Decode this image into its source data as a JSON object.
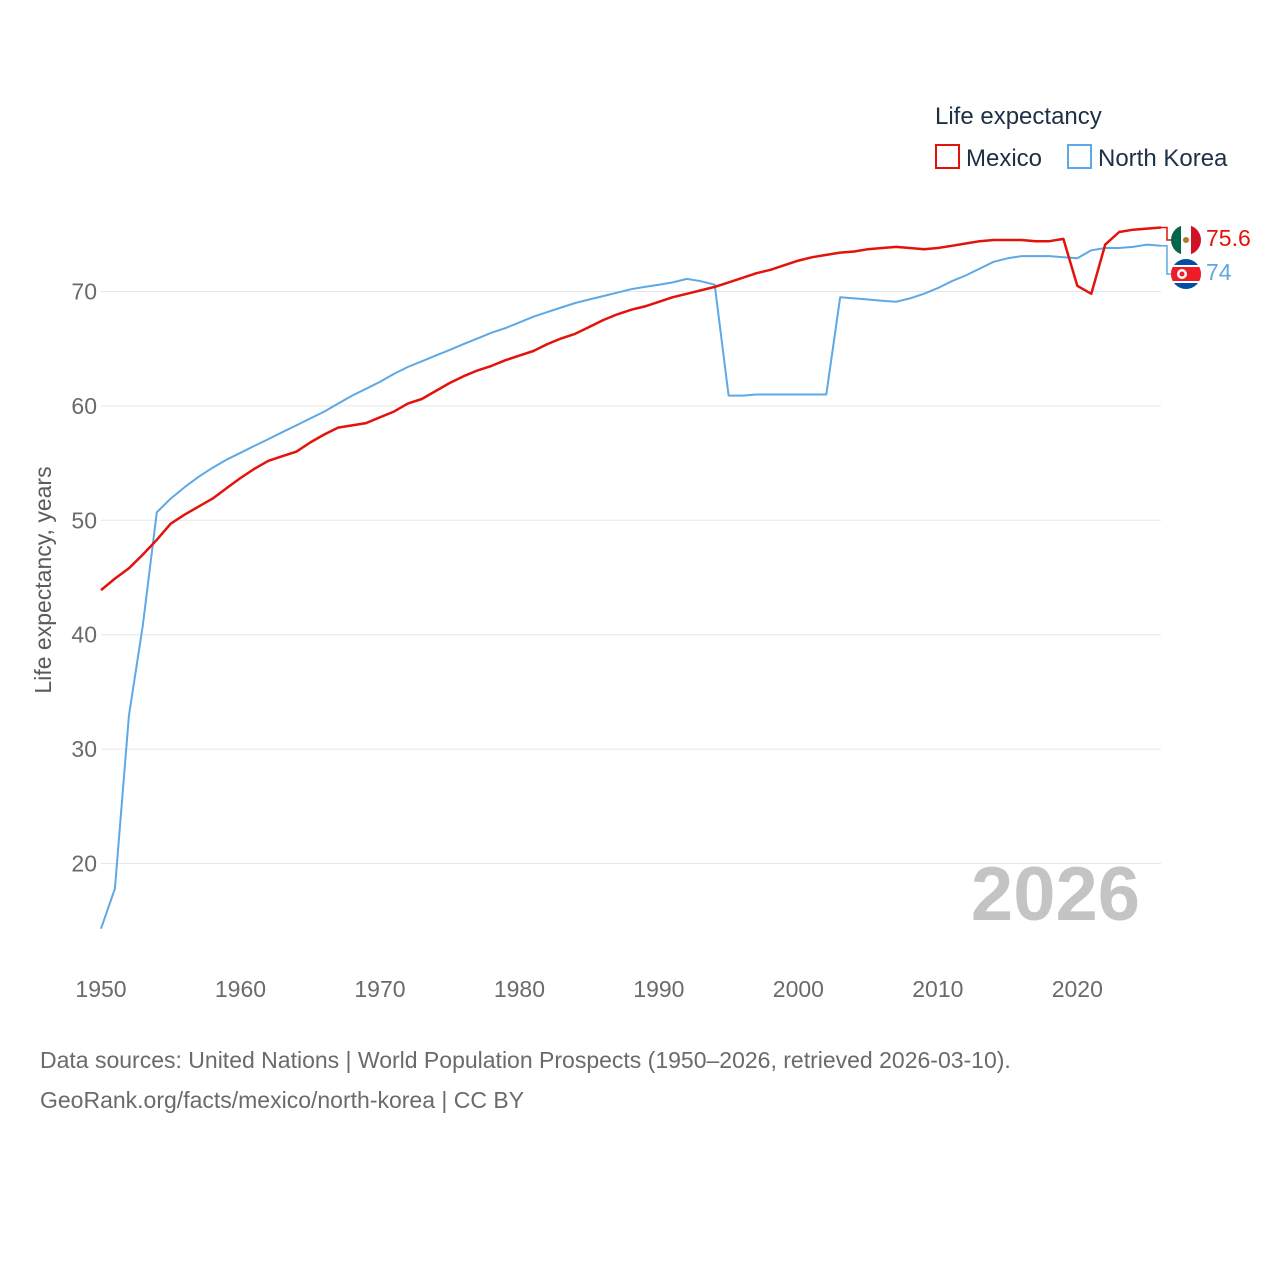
{
  "chart_data": {
    "type": "line",
    "ylabel": "Life expectancy, years",
    "xlabel": "",
    "legend_title": "Life expectancy",
    "legend_position": "top-right",
    "year_watermark": "2026",
    "xlim": [
      1950,
      2026
    ],
    "ylim": [
      12,
      78
    ],
    "x_ticks": [
      1950,
      1960,
      1970,
      1980,
      1990,
      2000,
      2010,
      2020
    ],
    "y_ticks": [
      20,
      30,
      40,
      50,
      60,
      70
    ],
    "grid": true,
    "series": [
      {
        "name": "Mexico",
        "color": "#e3120b",
        "end_label": "75.6",
        "flag": "mexico-flag",
        "points": [
          [
            1950,
            43.9
          ],
          [
            1951,
            44.9
          ],
          [
            1952,
            45.8
          ],
          [
            1953,
            47.0
          ],
          [
            1954,
            48.3
          ],
          [
            1955,
            49.7
          ],
          [
            1956,
            50.5
          ],
          [
            1957,
            51.2
          ],
          [
            1958,
            51.9
          ],
          [
            1959,
            52.8
          ],
          [
            1960,
            53.7
          ],
          [
            1961,
            54.5
          ],
          [
            1962,
            55.2
          ],
          [
            1963,
            55.6
          ],
          [
            1964,
            56.0
          ],
          [
            1965,
            56.8
          ],
          [
            1966,
            57.5
          ],
          [
            1967,
            58.1
          ],
          [
            1968,
            58.3
          ],
          [
            1969,
            58.5
          ],
          [
            1970,
            59.0
          ],
          [
            1971,
            59.5
          ],
          [
            1972,
            60.2
          ],
          [
            1973,
            60.6
          ],
          [
            1974,
            61.3
          ],
          [
            1975,
            62.0
          ],
          [
            1976,
            62.6
          ],
          [
            1977,
            63.1
          ],
          [
            1978,
            63.5
          ],
          [
            1979,
            64.0
          ],
          [
            1980,
            64.4
          ],
          [
            1981,
            64.8
          ],
          [
            1982,
            65.4
          ],
          [
            1983,
            65.9
          ],
          [
            1984,
            66.3
          ],
          [
            1985,
            66.9
          ],
          [
            1986,
            67.5
          ],
          [
            1987,
            68.0
          ],
          [
            1988,
            68.4
          ],
          [
            1989,
            68.7
          ],
          [
            1990,
            69.1
          ],
          [
            1991,
            69.5
          ],
          [
            1992,
            69.8
          ],
          [
            1993,
            70.1
          ],
          [
            1994,
            70.4
          ],
          [
            1995,
            70.8
          ],
          [
            1996,
            71.2
          ],
          [
            1997,
            71.6
          ],
          [
            1998,
            71.9
          ],
          [
            1999,
            72.3
          ],
          [
            2000,
            72.7
          ],
          [
            2001,
            73.0
          ],
          [
            2002,
            73.2
          ],
          [
            2003,
            73.4
          ],
          [
            2004,
            73.5
          ],
          [
            2005,
            73.7
          ],
          [
            2006,
            73.8
          ],
          [
            2007,
            73.9
          ],
          [
            2008,
            73.8
          ],
          [
            2009,
            73.7
          ],
          [
            2010,
            73.8
          ],
          [
            2011,
            74.0
          ],
          [
            2012,
            74.2
          ],
          [
            2013,
            74.4
          ],
          [
            2014,
            74.5
          ],
          [
            2015,
            74.5
          ],
          [
            2016,
            74.5
          ],
          [
            2017,
            74.4
          ],
          [
            2018,
            74.4
          ],
          [
            2019,
            74.6
          ],
          [
            2020,
            70.5
          ],
          [
            2021,
            69.8
          ],
          [
            2022,
            74.1
          ],
          [
            2023,
            75.2
          ],
          [
            2024,
            75.4
          ],
          [
            2025,
            75.5
          ],
          [
            2026,
            75.6
          ]
        ]
      },
      {
        "name": "North Korea",
        "color": "#5ea8e5",
        "end_label": "74",
        "flag": "north-korea-flag",
        "points": [
          [
            1950,
            14.3
          ],
          [
            1951,
            17.8
          ],
          [
            1952,
            32.9
          ],
          [
            1953,
            40.8
          ],
          [
            1954,
            50.7
          ],
          [
            1955,
            51.9
          ],
          [
            1956,
            52.9
          ],
          [
            1957,
            53.8
          ],
          [
            1958,
            54.6
          ],
          [
            1959,
            55.3
          ],
          [
            1960,
            55.9
          ],
          [
            1961,
            56.5
          ],
          [
            1962,
            57.1
          ],
          [
            1963,
            57.7
          ],
          [
            1964,
            58.3
          ],
          [
            1965,
            58.9
          ],
          [
            1966,
            59.5
          ],
          [
            1967,
            60.2
          ],
          [
            1968,
            60.9
          ],
          [
            1969,
            61.5
          ],
          [
            1970,
            62.1
          ],
          [
            1971,
            62.8
          ],
          [
            1972,
            63.4
          ],
          [
            1973,
            63.9
          ],
          [
            1974,
            64.4
          ],
          [
            1975,
            64.9
          ],
          [
            1976,
            65.4
          ],
          [
            1977,
            65.9
          ],
          [
            1978,
            66.4
          ],
          [
            1979,
            66.8
          ],
          [
            1980,
            67.3
          ],
          [
            1981,
            67.8
          ],
          [
            1982,
            68.2
          ],
          [
            1983,
            68.6
          ],
          [
            1984,
            69.0
          ],
          [
            1985,
            69.3
          ],
          [
            1986,
            69.6
          ],
          [
            1987,
            69.9
          ],
          [
            1988,
            70.2
          ],
          [
            1989,
            70.4
          ],
          [
            1990,
            70.6
          ],
          [
            1991,
            70.8
          ],
          [
            1992,
            71.1
          ],
          [
            1993,
            70.9
          ],
          [
            1994,
            70.6
          ],
          [
            1995,
            60.9
          ],
          [
            1996,
            60.9
          ],
          [
            1997,
            61.0
          ],
          [
            1998,
            61.0
          ],
          [
            1999,
            61.0
          ],
          [
            2000,
            61.0
          ],
          [
            2001,
            61.0
          ],
          [
            2002,
            61.0
          ],
          [
            2003,
            69.5
          ],
          [
            2004,
            69.4
          ],
          [
            2005,
            69.3
          ],
          [
            2006,
            69.2
          ],
          [
            2007,
            69.1
          ],
          [
            2008,
            69.4
          ],
          [
            2009,
            69.8
          ],
          [
            2010,
            70.3
          ],
          [
            2011,
            70.9
          ],
          [
            2012,
            71.4
          ],
          [
            2013,
            72.0
          ],
          [
            2014,
            72.6
          ],
          [
            2015,
            72.9
          ],
          [
            2016,
            73.1
          ],
          [
            2017,
            73.1
          ],
          [
            2018,
            73.1
          ],
          [
            2019,
            73.0
          ],
          [
            2020,
            72.9
          ],
          [
            2021,
            73.6
          ],
          [
            2022,
            73.8
          ],
          [
            2023,
            73.8
          ],
          [
            2024,
            73.9
          ],
          [
            2025,
            74.1
          ],
          [
            2026,
            74.0
          ]
        ]
      }
    ]
  },
  "footer": {
    "line1": "Data sources: United Nations | World Population Prospects (1950–2026, retrieved 2026-03-10).",
    "line2": "GeoRank.org/facts/mexico/north-korea | CC BY"
  }
}
